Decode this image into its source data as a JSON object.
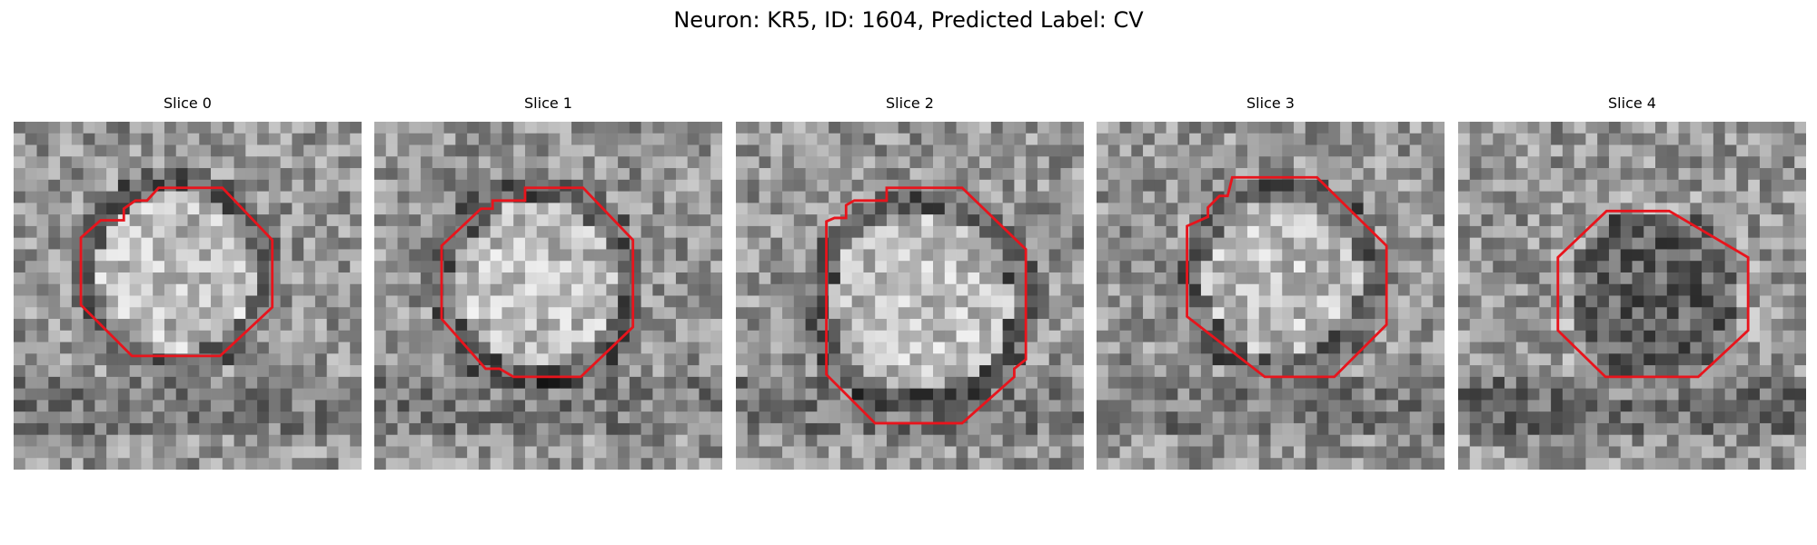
{
  "figure": {
    "title": "Neuron: KR5, ID: 1604, Predicted Label: CV"
  },
  "colors": {
    "contour": "#e8141c",
    "background": "#ffffff"
  },
  "panels": [
    {
      "title": "Slice 0",
      "content": "grayscale micrograph patch with red octagonal contour",
      "appearance": "bright center"
    },
    {
      "title": "Slice 1",
      "content": "grayscale micrograph patch with red octagonal contour",
      "appearance": "bright center"
    },
    {
      "title": "Slice 2",
      "content": "grayscale micrograph patch with red octagonal contour",
      "appearance": "bright center"
    },
    {
      "title": "Slice 3",
      "content": "grayscale micrograph patch with red octagonal contour",
      "appearance": "bright center"
    },
    {
      "title": "Slice 4",
      "content": "grayscale micrograph patch with red octagonal contour",
      "appearance": "dark center"
    }
  ]
}
